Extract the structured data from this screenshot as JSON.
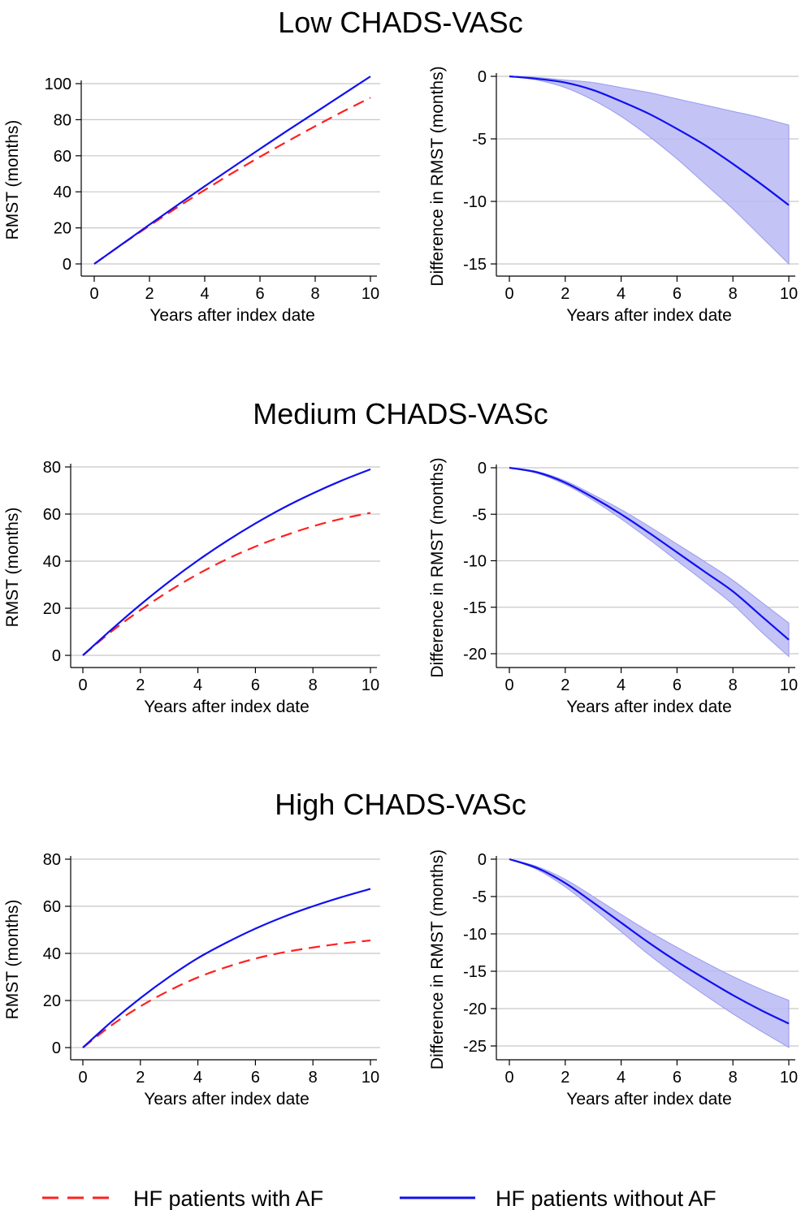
{
  "colors": {
    "with_af": "#ff2020",
    "without_af": "#1010f0",
    "ci_fill": "#b8b8f4",
    "ci_edge": "#9a9aee",
    "grid": "#c8c8c8"
  },
  "legend": {
    "with_af_label": "HF patients with AF",
    "without_af_label": "HF patients without AF"
  },
  "panels": [
    {
      "title": "Low CHADS-VASc"
    },
    {
      "title": "Medium CHADS-VASc"
    },
    {
      "title": "High CHADS-VASc"
    }
  ],
  "chart_data": [
    {
      "type": "line",
      "panel": "Low CHADS-VASc",
      "xlabel": "Years after index date",
      "ylabel": "RMST (months)",
      "xlim": [
        0,
        10
      ],
      "ylim": [
        0,
        100
      ],
      "xticks": [
        0,
        2,
        4,
        6,
        8,
        10
      ],
      "yticks": [
        0,
        20,
        40,
        60,
        80,
        100
      ],
      "grid": true,
      "x": [
        0,
        1,
        2,
        3,
        4,
        5,
        6,
        7,
        8,
        9,
        10
      ],
      "series": [
        {
          "name": "HF patients with AF",
          "style": "dashed",
          "values": [
            0,
            10.8,
            21.2,
            31.3,
            41.0,
            50.4,
            59.4,
            68.0,
            76.4,
            84.5,
            92.2
          ]
        },
        {
          "name": "HF patients without AF",
          "style": "solid",
          "values": [
            0,
            10.9,
            21.8,
            32.5,
            43.1,
            53.5,
            63.8,
            74.0,
            84.0,
            94.0,
            104.0
          ]
        }
      ]
    },
    {
      "type": "area",
      "panel": "Low CHADS-VASc",
      "xlabel": "Years after index date",
      "ylabel": "Difference in RMST (months)",
      "xlim": [
        0,
        10
      ],
      "ylim": [
        -15,
        0
      ],
      "xticks": [
        0,
        2,
        4,
        6,
        8,
        10
      ],
      "yticks": [
        0,
        -5,
        -10,
        -15
      ],
      "grid": true,
      "x": [
        0,
        1,
        2,
        3,
        4,
        5,
        6,
        7,
        8,
        9,
        10
      ],
      "series": [
        {
          "name": "difference",
          "style": "solid",
          "values": [
            0,
            -0.2,
            -0.5,
            -1.1,
            -2.0,
            -3.0,
            -4.2,
            -5.5,
            -7.0,
            -8.6,
            -10.3
          ]
        },
        {
          "name": "lower",
          "style": "band",
          "values": [
            0,
            -0.3,
            -0.9,
            -1.9,
            -3.2,
            -4.8,
            -6.6,
            -8.6,
            -10.6,
            -12.8,
            -15.0
          ]
        },
        {
          "name": "upper",
          "style": "band",
          "values": [
            0,
            -0.1,
            -0.3,
            -0.5,
            -0.9,
            -1.3,
            -1.8,
            -2.3,
            -2.8,
            -3.3,
            -3.9
          ]
        }
      ]
    },
    {
      "type": "line",
      "panel": "Medium CHADS-VASc",
      "xlabel": "Years after index date",
      "ylabel": "RMST (months)",
      "xlim": [
        0,
        10
      ],
      "ylim": [
        0,
        80
      ],
      "xticks": [
        0,
        2,
        4,
        6,
        8,
        10
      ],
      "yticks": [
        0,
        20,
        40,
        60,
        80
      ],
      "grid": true,
      "x": [
        0,
        1,
        2,
        3,
        4,
        5,
        6,
        7,
        8,
        9,
        10
      ],
      "series": [
        {
          "name": "HF patients with AF",
          "style": "dashed",
          "values": [
            0,
            10.2,
            19.2,
            27.3,
            34.5,
            40.8,
            46.2,
            50.8,
            54.8,
            58.0,
            60.5
          ]
        },
        {
          "name": "HF patients without AF",
          "style": "solid",
          "values": [
            0,
            11.0,
            21.5,
            31.3,
            40.3,
            48.5,
            56.0,
            62.8,
            68.8,
            74.2,
            79.0
          ]
        }
      ]
    },
    {
      "type": "area",
      "panel": "Medium CHADS-VASc",
      "xlabel": "Years after index date",
      "ylabel": "Difference in RMST (months)",
      "xlim": [
        0,
        10
      ],
      "ylim": [
        -20,
        0
      ],
      "xticks": [
        0,
        2,
        4,
        6,
        8,
        10
      ],
      "yticks": [
        0,
        -5,
        -10,
        -15,
        -20
      ],
      "grid": true,
      "x": [
        0,
        1,
        2,
        3,
        4,
        5,
        6,
        7,
        8,
        9,
        10
      ],
      "series": [
        {
          "name": "difference",
          "style": "solid",
          "values": [
            0,
            -0.5,
            -1.6,
            -3.2,
            -5.0,
            -7.0,
            -9.1,
            -11.2,
            -13.3,
            -15.9,
            -18.5
          ]
        },
        {
          "name": "lower",
          "style": "band",
          "values": [
            0,
            -0.6,
            -1.8,
            -3.5,
            -5.5,
            -7.7,
            -10.0,
            -12.3,
            -14.7,
            -17.6,
            -20.3
          ]
        },
        {
          "name": "upper",
          "style": "band",
          "values": [
            0,
            -0.4,
            -1.4,
            -2.9,
            -4.5,
            -6.3,
            -8.2,
            -10.1,
            -12.1,
            -14.4,
            -16.7
          ]
        }
      ]
    },
    {
      "type": "line",
      "panel": "High CHADS-VASc",
      "xlabel": "Years after index date",
      "ylabel": "RMST (months)",
      "xlim": [
        0,
        10
      ],
      "ylim": [
        0,
        80
      ],
      "xticks": [
        0,
        2,
        4,
        6,
        8,
        10
      ],
      "yticks": [
        0,
        20,
        40,
        60,
        80
      ],
      "grid": true,
      "x": [
        0,
        1,
        2,
        3,
        4,
        5,
        6,
        7,
        8,
        9,
        10
      ],
      "series": [
        {
          "name": "HF patients with AF",
          "style": "dashed",
          "values": [
            0,
            9.5,
            17.5,
            24.2,
            29.8,
            34.2,
            37.8,
            40.5,
            42.5,
            44.2,
            45.5
          ]
        },
        {
          "name": "HF patients without AF",
          "style": "solid",
          "values": [
            0,
            11.0,
            21.0,
            30.0,
            38.0,
            44.6,
            50.5,
            55.6,
            60.0,
            63.9,
            67.4
          ]
        }
      ]
    },
    {
      "type": "area",
      "panel": "High CHADS-VASc",
      "xlabel": "Years after index date",
      "ylabel": "Difference in RMST (months)",
      "xlim": [
        0,
        10
      ],
      "ylim": [
        -25,
        0
      ],
      "xticks": [
        0,
        2,
        4,
        6,
        8,
        10
      ],
      "yticks": [
        0,
        -5,
        -10,
        -15,
        -20,
        -25
      ],
      "grid": true,
      "x": [
        0,
        1,
        2,
        3,
        4,
        5,
        6,
        7,
        8,
        9,
        10
      ],
      "series": [
        {
          "name": "difference",
          "style": "solid",
          "values": [
            0,
            -1.2,
            -3.2,
            -5.8,
            -8.5,
            -11.2,
            -13.7,
            -16.0,
            -18.2,
            -20.2,
            -22.0
          ]
        },
        {
          "name": "lower",
          "style": "band",
          "values": [
            0,
            -1.4,
            -3.7,
            -6.6,
            -9.7,
            -12.8,
            -15.6,
            -18.2,
            -20.7,
            -23.0,
            -25.2
          ]
        },
        {
          "name": "upper",
          "style": "band",
          "values": [
            0,
            -1.0,
            -2.7,
            -5.0,
            -7.4,
            -9.7,
            -11.8,
            -13.8,
            -15.7,
            -17.4,
            -18.9
          ]
        }
      ]
    }
  ]
}
